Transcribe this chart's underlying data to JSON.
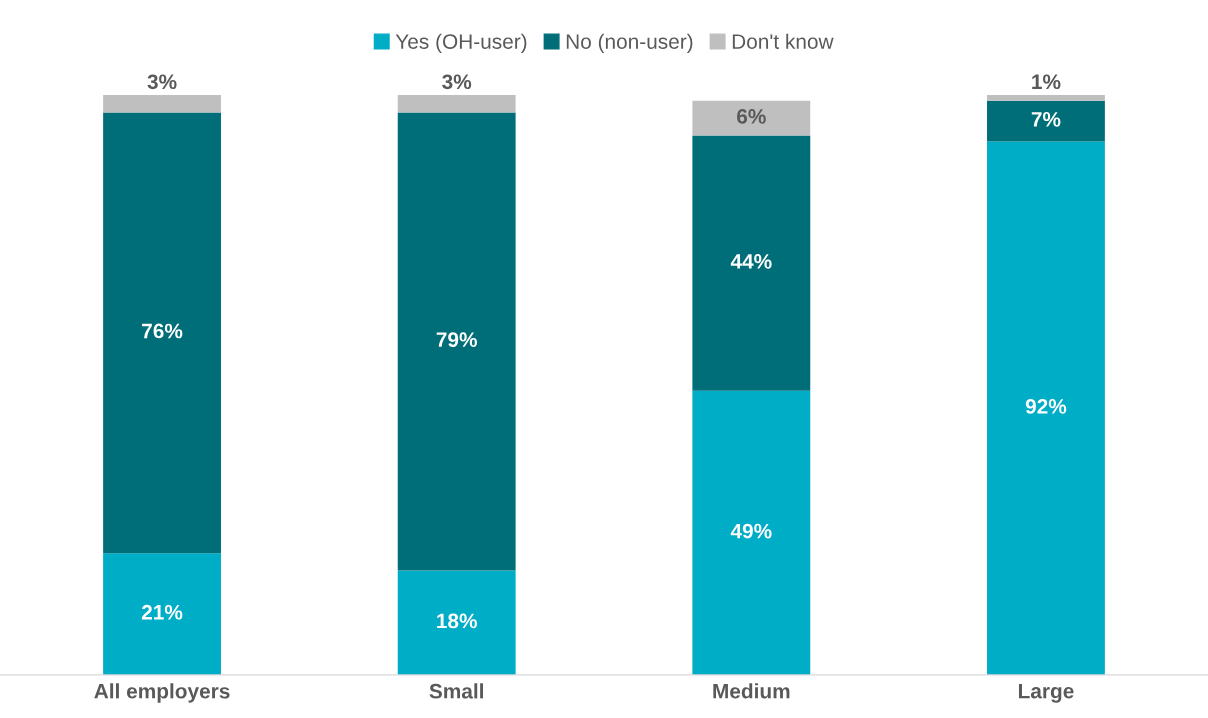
{
  "chart_data": {
    "type": "bar",
    "stacked": true,
    "legend": "top",
    "categories": [
      "All employers",
      "Small",
      "Medium",
      "Large"
    ],
    "series": [
      {
        "name": "Yes (OH-user)",
        "color": "#00adc6",
        "values": [
          21,
          18,
          49,
          92
        ],
        "value_labels": [
          "21%",
          "18%",
          "49%",
          "92%"
        ]
      },
      {
        "name": "No (non-user)",
        "color": "#006e78",
        "values": [
          76,
          79,
          44,
          7
        ],
        "value_labels": [
          "76%",
          "79%",
          "44%",
          "7%"
        ]
      },
      {
        "name": "Don't know",
        "color": "#bfbfbf",
        "values": [
          3,
          3,
          6,
          1
        ],
        "value_labels": [
          "3%",
          "3%",
          "6%",
          "1%"
        ]
      }
    ]
  }
}
